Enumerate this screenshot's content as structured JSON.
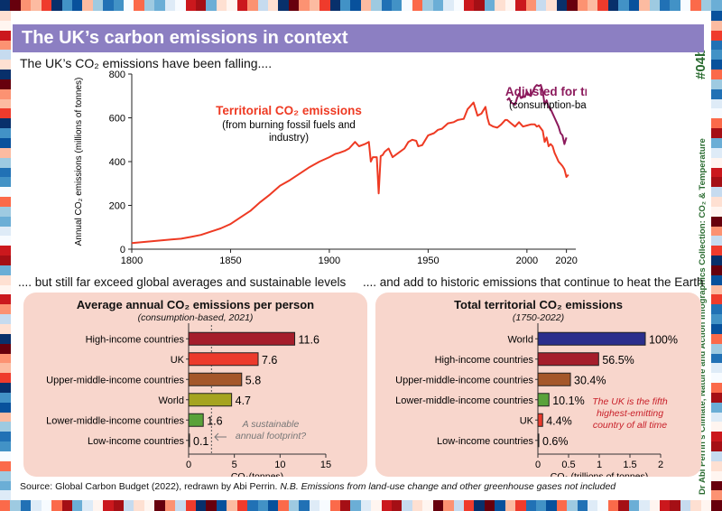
{
  "title": "The UK’s carbon emissions in context",
  "side_label": "Dr Abi Perrin’s Climate, Nature and Action Infographics Collection: CO₂ & Temperature",
  "badge": "#04b",
  "heading_top": "The UK’s CO₂ emissions have been falling....",
  "heading_bottom_left": ".... but still far exceed global averages and sustainable levels",
  "heading_bottom_right": ".... and add to historic emissions that continue to heat the Earth",
  "source": "Source: Global Carbon Budget (2022), redrawn by Abi Perrin.",
  "note": "N.B. Emissions from land-use change and other greenhouse gases not included",
  "colors": {
    "title_bar": "#8c7fc2",
    "territorial": "#ee3a23",
    "trade": "#8c1a5c",
    "panel": "#f8d6cc",
    "high_income": "#a51d2b",
    "uk": "#ec3a2c",
    "upper_middle": "#a4572a",
    "world_bar1": "#a5a420",
    "lower_middle": "#5aa23a",
    "world_bar2": "#2b2e8c",
    "note_red": "#c8202a"
  },
  "chart_data": [
    {
      "type": "line",
      "ylabel": "Annual CO₂ emissions (millions of tonnes)",
      "xlim": [
        1800,
        2022
      ],
      "ylim": [
        0,
        800
      ],
      "x_ticks": [
        1800,
        1850,
        1900,
        1950,
        2000,
        2020
      ],
      "y_ticks": [
        0,
        200,
        400,
        600,
        800
      ],
      "series": [
        {
          "name": "Territorial CO₂ emissions",
          "label_line1": "Territorial CO₂ emissions",
          "label_line2": "(from burning fossil fuels and",
          "label_line3": "industry)",
          "x": [
            1800,
            1805,
            1810,
            1815,
            1820,
            1825,
            1830,
            1835,
            1840,
            1845,
            1850,
            1855,
            1860,
            1865,
            1870,
            1875,
            1880,
            1885,
            1890,
            1895,
            1900,
            1903,
            1905,
            1908,
            1910,
            1913,
            1915,
            1918,
            1920,
            1921,
            1922,
            1924,
            1925,
            1926,
            1927,
            1928,
            1930,
            1932,
            1935,
            1938,
            1940,
            1942,
            1944,
            1945,
            1947,
            1950,
            1953,
            1955,
            1957,
            1960,
            1963,
            1965,
            1968,
            1970,
            1971,
            1973,
            1974,
            1975,
            1977,
            1979,
            1980,
            1981,
            1983,
            1985,
            1987,
            1989,
            1990,
            1992,
            1994,
            1996,
            1998,
            2000,
            2002,
            2004,
            2005,
            2006,
            2008,
            2009,
            2010,
            2011,
            2012,
            2013,
            2014,
            2015,
            2016,
            2017,
            2018,
            2019,
            2020,
            2021
          ],
          "y": [
            28,
            32,
            36,
            40,
            44,
            48,
            56,
            65,
            80,
            95,
            115,
            145,
            175,
            215,
            250,
            290,
            315,
            345,
            375,
            400,
            420,
            435,
            440,
            450,
            460,
            490,
            470,
            480,
            490,
            400,
            420,
            420,
            255,
            425,
            430,
            445,
            460,
            420,
            440,
            460,
            490,
            500,
            495,
            470,
            475,
            520,
            530,
            545,
            550,
            575,
            580,
            590,
            595,
            640,
            650,
            670,
            640,
            610,
            620,
            650,
            600,
            570,
            560,
            555,
            570,
            590,
            590,
            575,
            560,
            580,
            560,
            565,
            570,
            570,
            560,
            565,
            540,
            490,
            510,
            470,
            480,
            470,
            440,
            420,
            400,
            390,
            380,
            365,
            330,
            340
          ]
        },
        {
          "name": "Adjusted for trade",
          "label_line1": "Adjusted for trade",
          "label_line2": "(consumption-based)",
          "x": [
            1990,
            1991,
            1992,
            1993,
            1994,
            1995,
            1996,
            1997,
            1998,
            1999,
            2000,
            2001,
            2002,
            2003,
            2004,
            2005,
            2006,
            2007,
            2008,
            2009,
            2010,
            2011,
            2012,
            2013,
            2014,
            2015,
            2016,
            2017,
            2018,
            2019,
            2020
          ],
          "y": [
            680,
            690,
            670,
            665,
            660,
            690,
            710,
            690,
            700,
            695,
            720,
            705,
            700,
            720,
            740,
            750,
            745,
            750,
            720,
            660,
            680,
            650,
            640,
            620,
            600,
            580,
            560,
            530,
            520,
            480,
            510
          ]
        }
      ]
    },
    {
      "type": "bar",
      "orientation": "horizontal",
      "title": "Average annual CO₂ emissions per person",
      "subtitle": "(consumption-based, 2021)",
      "xlabel": "CO₂(tonnes)",
      "xlim": [
        0,
        15
      ],
      "x_ticks": [
        0,
        5,
        10,
        15
      ],
      "categories": [
        "High-income countries",
        "UK",
        "Upper-middle-income countries",
        "World",
        "Lower-middle-income countries",
        "Low-income countries"
      ],
      "values": [
        11.6,
        7.6,
        5.8,
        4.7,
        1.6,
        0.1
      ],
      "value_labels": [
        "11.6",
        "7.6",
        "5.8",
        "4.7",
        "1.6",
        "0.1"
      ],
      "reference_line": 2.5,
      "annotation_line1": "A sustainable",
      "annotation_line2": "annual footprint?"
    },
    {
      "type": "bar",
      "orientation": "horizontal",
      "title": "Total territorial CO₂ emissions",
      "subtitle": "(1750-2022)",
      "xlabel": "CO₂ (trillions of tonnes)",
      "xlim": [
        0,
        2
      ],
      "x_ticks": [
        0,
        0.5,
        1,
        1.5,
        2
      ],
      "x_tick_labels": [
        "0",
        "0.5",
        "1",
        "1.5",
        "2"
      ],
      "categories": [
        "World",
        "High-income countries",
        "Upper-middle-income countries",
        "Lower-middle-income countries",
        "UK",
        "Low-income countries"
      ],
      "values": [
        1.75,
        0.99,
        0.53,
        0.18,
        0.077,
        0.01
      ],
      "value_labels": [
        "100%",
        "56.5%",
        "30.4%",
        "10.1%",
        "4.4%",
        "0.6%"
      ],
      "annotation_line1": "The UK is the fifth",
      "annotation_line2": "highest-emitting",
      "annotation_line3": "country of all time"
    }
  ]
}
